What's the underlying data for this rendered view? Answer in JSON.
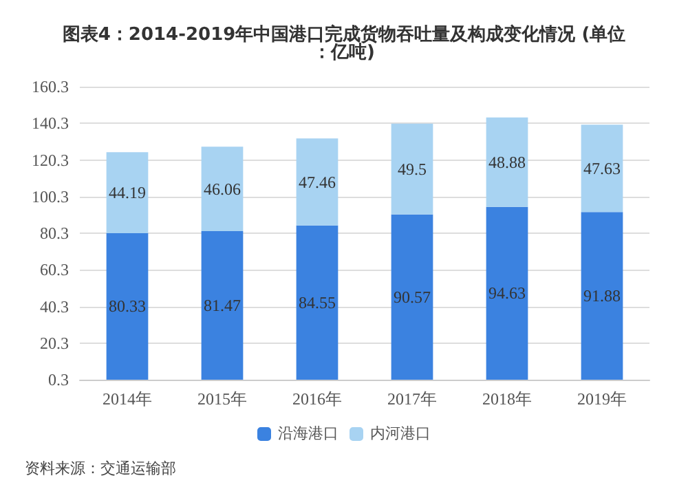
{
  "chart_data": {
    "type": "bar",
    "title": "图表4：2014-2019年中国港口完成货物吞吐量及构成变化情况 (单位：亿吨)",
    "categories": [
      "2014年",
      "2015年",
      "2016年",
      "2017年",
      "2018年",
      "2019年"
    ],
    "stacked": true,
    "data_labels": true,
    "series": [
      {
        "name": "沿海港口",
        "color": "#3b82e0",
        "values": [
          80.33,
          81.47,
          84.55,
          90.57,
          94.63,
          91.88
        ]
      },
      {
        "name": "内河港口",
        "color": "#a8d3f2",
        "values": [
          44.19,
          46.06,
          47.46,
          49.5,
          48.88,
          47.63
        ]
      }
    ],
    "ylim": [
      0.3,
      160.3
    ],
    "yticks": [
      0.3,
      20.3,
      40.3,
      60.3,
      80.3,
      100.3,
      120.3,
      140.3,
      160.3
    ],
    "grid": "y",
    "legend": "bottom",
    "annotations": [
      "资料来源：交通运输部"
    ]
  }
}
